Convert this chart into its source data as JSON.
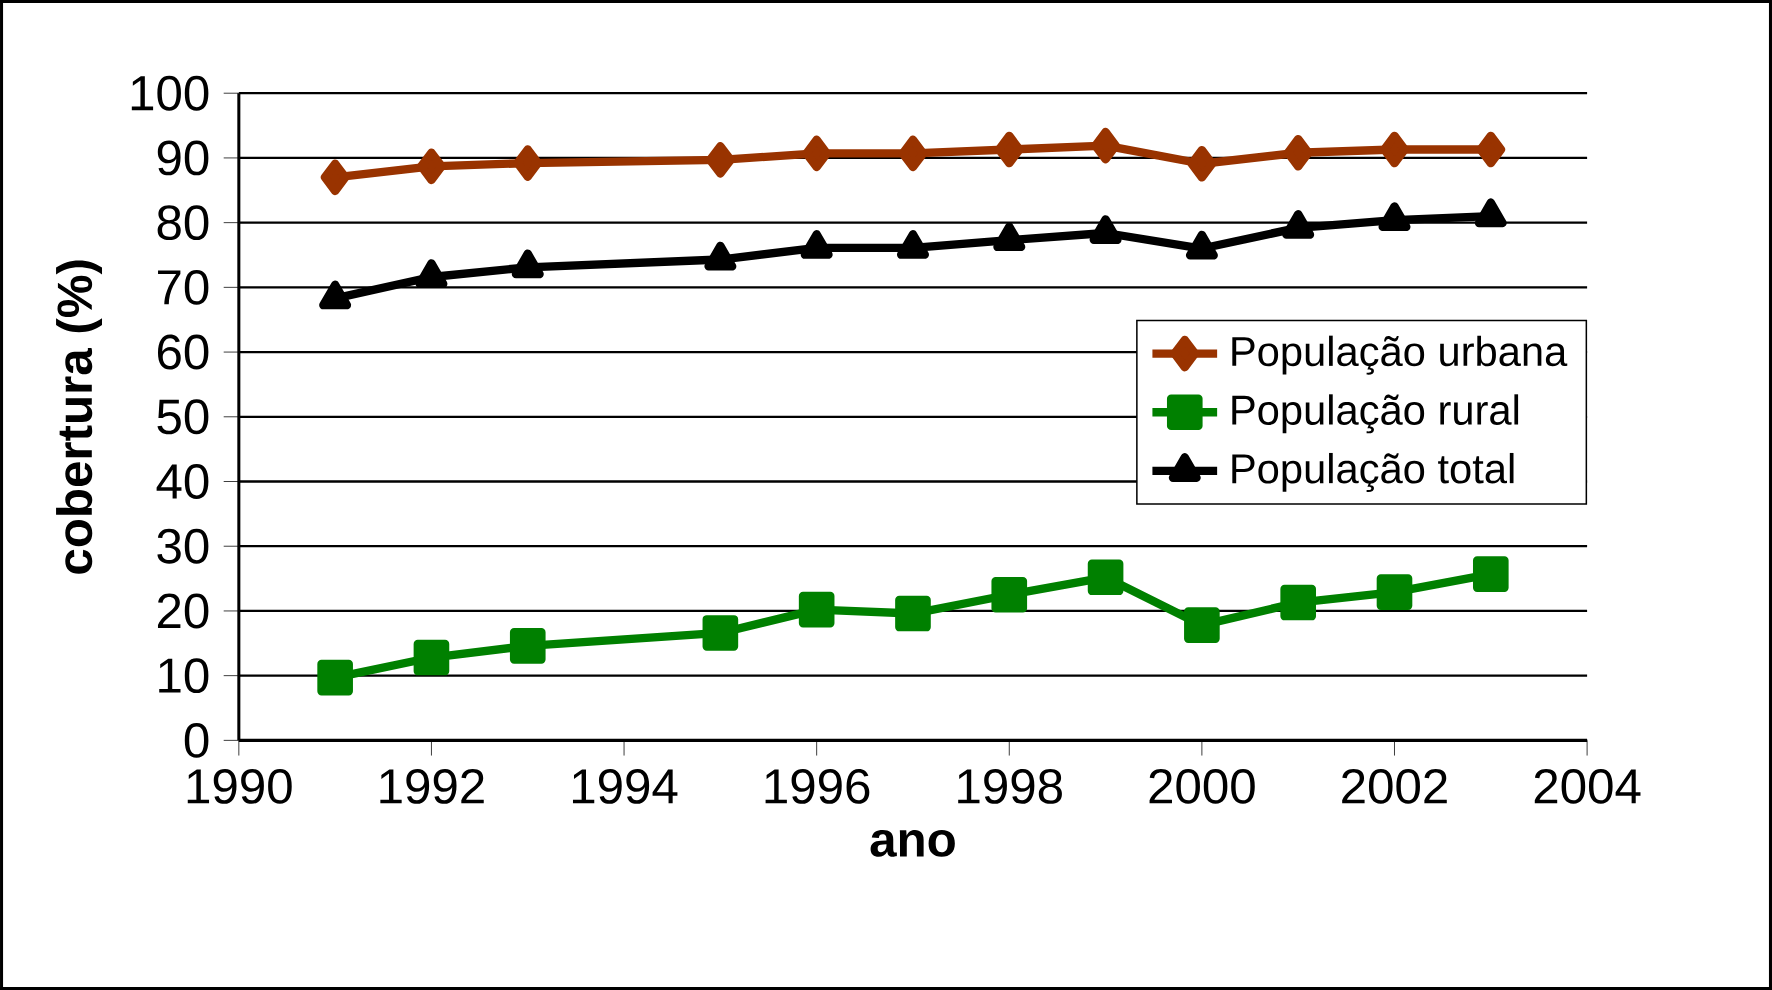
{
  "chart_data": {
    "type": "line",
    "xlabel": "ano",
    "ylabel": "cobertura (%)",
    "x": [
      1991,
      1992,
      1993,
      1995,
      1996,
      1997,
      1998,
      1999,
      2000,
      2001,
      2002,
      2003
    ],
    "series": [
      {
        "name": "População urbana",
        "color": "#993300",
        "marker": "diamond",
        "values": [
          87,
          88.7,
          89.2,
          89.7,
          90.7,
          90.7,
          91.3,
          91.9,
          89.1,
          90.8,
          91.3,
          91.3
        ]
      },
      {
        "name": "População rural",
        "color": "#008000",
        "marker": "square",
        "values": [
          9.7,
          12.8,
          14.6,
          16.6,
          20.2,
          19.6,
          22.5,
          25.2,
          17.8,
          21.3,
          22.9,
          25.7
        ]
      },
      {
        "name": "População total",
        "color": "#000000",
        "marker": "triangle",
        "values": [
          68.3,
          71.6,
          73.1,
          74.3,
          76.1,
          76.1,
          77.3,
          78.4,
          76,
          79.2,
          80.4,
          81
        ]
      }
    ],
    "xlim": [
      1990,
      2004
    ],
    "xticks": [
      1990,
      1992,
      1994,
      1996,
      1998,
      2000,
      2002,
      2004
    ],
    "ylim": [
      0,
      100
    ],
    "yticks": [
      0,
      10,
      20,
      30,
      40,
      50,
      60,
      70,
      80,
      90,
      100
    ],
    "grid": "y",
    "legend": "right",
    "line_style": "solid"
  }
}
